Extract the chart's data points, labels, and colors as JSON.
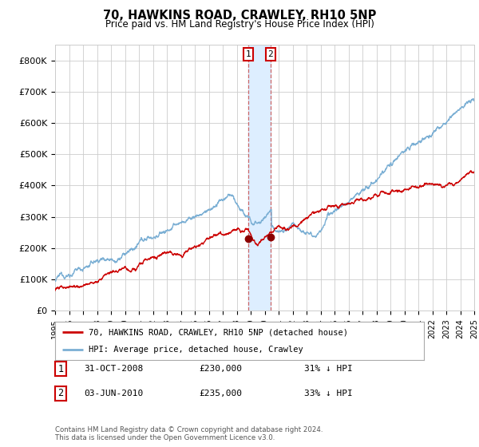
{
  "title": "70, HAWKINS ROAD, CRAWLEY, RH10 5NP",
  "subtitle": "Price paid vs. HM Land Registry's House Price Index (HPI)",
  "footer": "Contains HM Land Registry data © Crown copyright and database right 2024.\nThis data is licensed under the Open Government Licence v3.0.",
  "legend_entry1": "70, HAWKINS ROAD, CRAWLEY, RH10 5NP (detached house)",
  "legend_entry2": "HPI: Average price, detached house, Crawley",
  "transaction1_label": "1",
  "transaction1_date": "31-OCT-2008",
  "transaction1_price": "£230,000",
  "transaction1_hpi": "31% ↓ HPI",
  "transaction2_label": "2",
  "transaction2_date": "03-JUN-2010",
  "transaction2_price": "£235,000",
  "transaction2_hpi": "33% ↓ HPI",
  "hpi_color": "#7bafd4",
  "price_color": "#cc0000",
  "marker_color": "#8b0000",
  "vline_color": "#cc6666",
  "grid_color": "#cccccc",
  "bg_color": "#ffffff",
  "highlight_color": "#ddeeff",
  "ylim": [
    0,
    850000
  ],
  "yticks": [
    0,
    100000,
    200000,
    300000,
    400000,
    500000,
    600000,
    700000,
    800000
  ],
  "ytick_labels": [
    "£0",
    "£100K",
    "£200K",
    "£300K",
    "£400K",
    "£500K",
    "£600K",
    "£700K",
    "£800K"
  ],
  "year_start": 1995,
  "year_end": 2025,
  "transaction1_year": 2008.83,
  "transaction2_year": 2010.42,
  "transaction1_price_val": 230000,
  "transaction2_price_val": 235000
}
